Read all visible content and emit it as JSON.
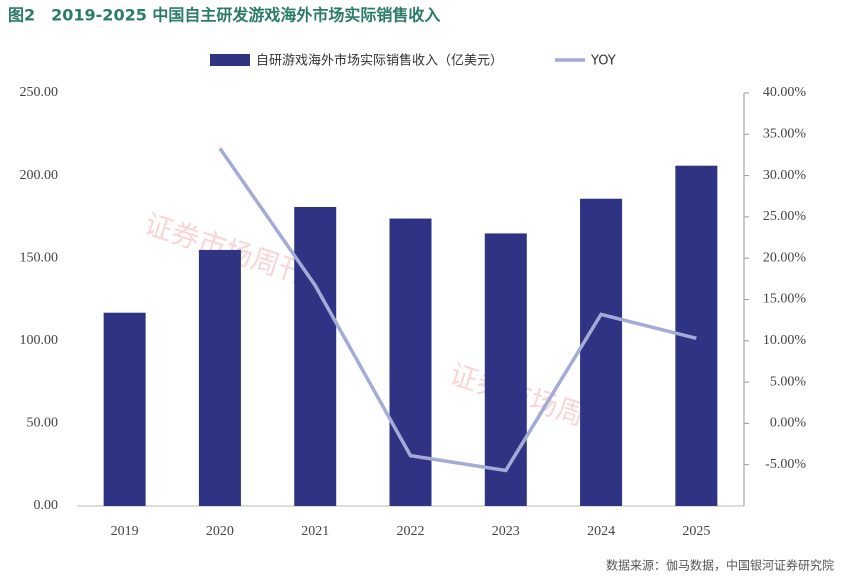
{
  "chart_data": {
    "type": "bar",
    "title": "图2　2019-2025 中国自主研发游戏海外市场实际销售收入",
    "categories": [
      "2019",
      "2020",
      "2021",
      "2022",
      "2023",
      "2024",
      "2025"
    ],
    "series": [
      {
        "name": "自研游戏海外市场实际销售收入（亿美元）",
        "color": "#2e3383",
        "type": "bar",
        "values": [
          117,
          155,
          181,
          174,
          165,
          186,
          206
        ]
      },
      {
        "name": "YOY",
        "color": "#a3acd6",
        "type": "line",
        "axis": "y2",
        "values": [
          null,
          33.3,
          16.7,
          -3.9,
          -5.7,
          13.2,
          10.3
        ]
      }
    ],
    "ylim": [
      0,
      250
    ],
    "yticks": [
      {
        "value": 0,
        "label": "0.00"
      },
      {
        "value": 50,
        "label": "50.00"
      },
      {
        "value": 100,
        "label": "100.00"
      },
      {
        "value": 150,
        "label": "150.00"
      },
      {
        "value": 200,
        "label": "200.00"
      },
      {
        "value": 250,
        "label": "250.00"
      }
    ],
    "y2lim": [
      -10,
      40
    ],
    "y2ticks": [
      {
        "value": -5,
        "label": "-5.00%"
      },
      {
        "value": 0,
        "label": "0.00%"
      },
      {
        "value": 5,
        "label": "5.00%"
      },
      {
        "value": 10,
        "label": "10.00%"
      },
      {
        "value": 15,
        "label": "15.00%"
      },
      {
        "value": 20,
        "label": "20.00%"
      },
      {
        "value": 25,
        "label": "25.00%"
      },
      {
        "value": 30,
        "label": "30.00%"
      },
      {
        "value": 35,
        "label": "35.00%"
      },
      {
        "value": 40,
        "label": "40.00%"
      }
    ],
    "legend": "top",
    "source": "数据来源：伽马数据，中国银河证券研究院",
    "watermark": "证券市场周刊"
  }
}
